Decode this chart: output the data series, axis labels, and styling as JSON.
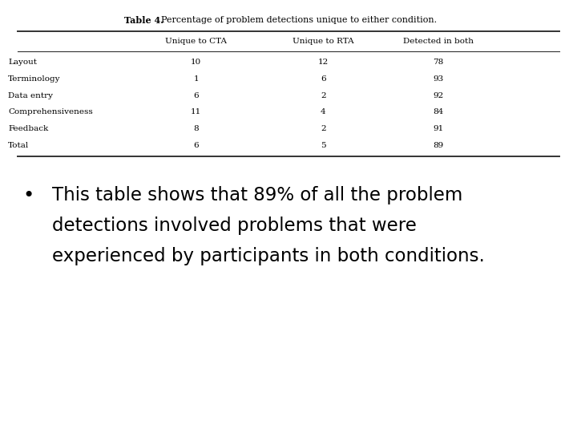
{
  "table_title_bold": "Table 4.",
  "table_title_rest": "  Percentage of problem detections unique to either condition.",
  "col_headers": [
    "",
    "Unique to CTA",
    "Unique to RTA",
    "Detected in both"
  ],
  "rows": [
    [
      "Layout",
      "10",
      "12",
      "78"
    ],
    [
      "Terminology",
      "1",
      "6",
      "93"
    ],
    [
      "Data entry",
      "6",
      "2",
      "92"
    ],
    [
      "Comprehensiveness",
      "11",
      "4",
      "84"
    ],
    [
      "Feedback",
      "8",
      "2",
      "91"
    ],
    [
      "Total",
      "6",
      "5",
      "89"
    ]
  ],
  "bullet_line1": "This table shows that 89% of all the problem",
  "bullet_line2": "detections involved problems that were",
  "bullet_line3": "experienced by participants in both conditions.",
  "bg_color": "#ffffff",
  "text_color": "#000000",
  "table_font_size": 7.5,
  "bullet_font_size": 16.5
}
